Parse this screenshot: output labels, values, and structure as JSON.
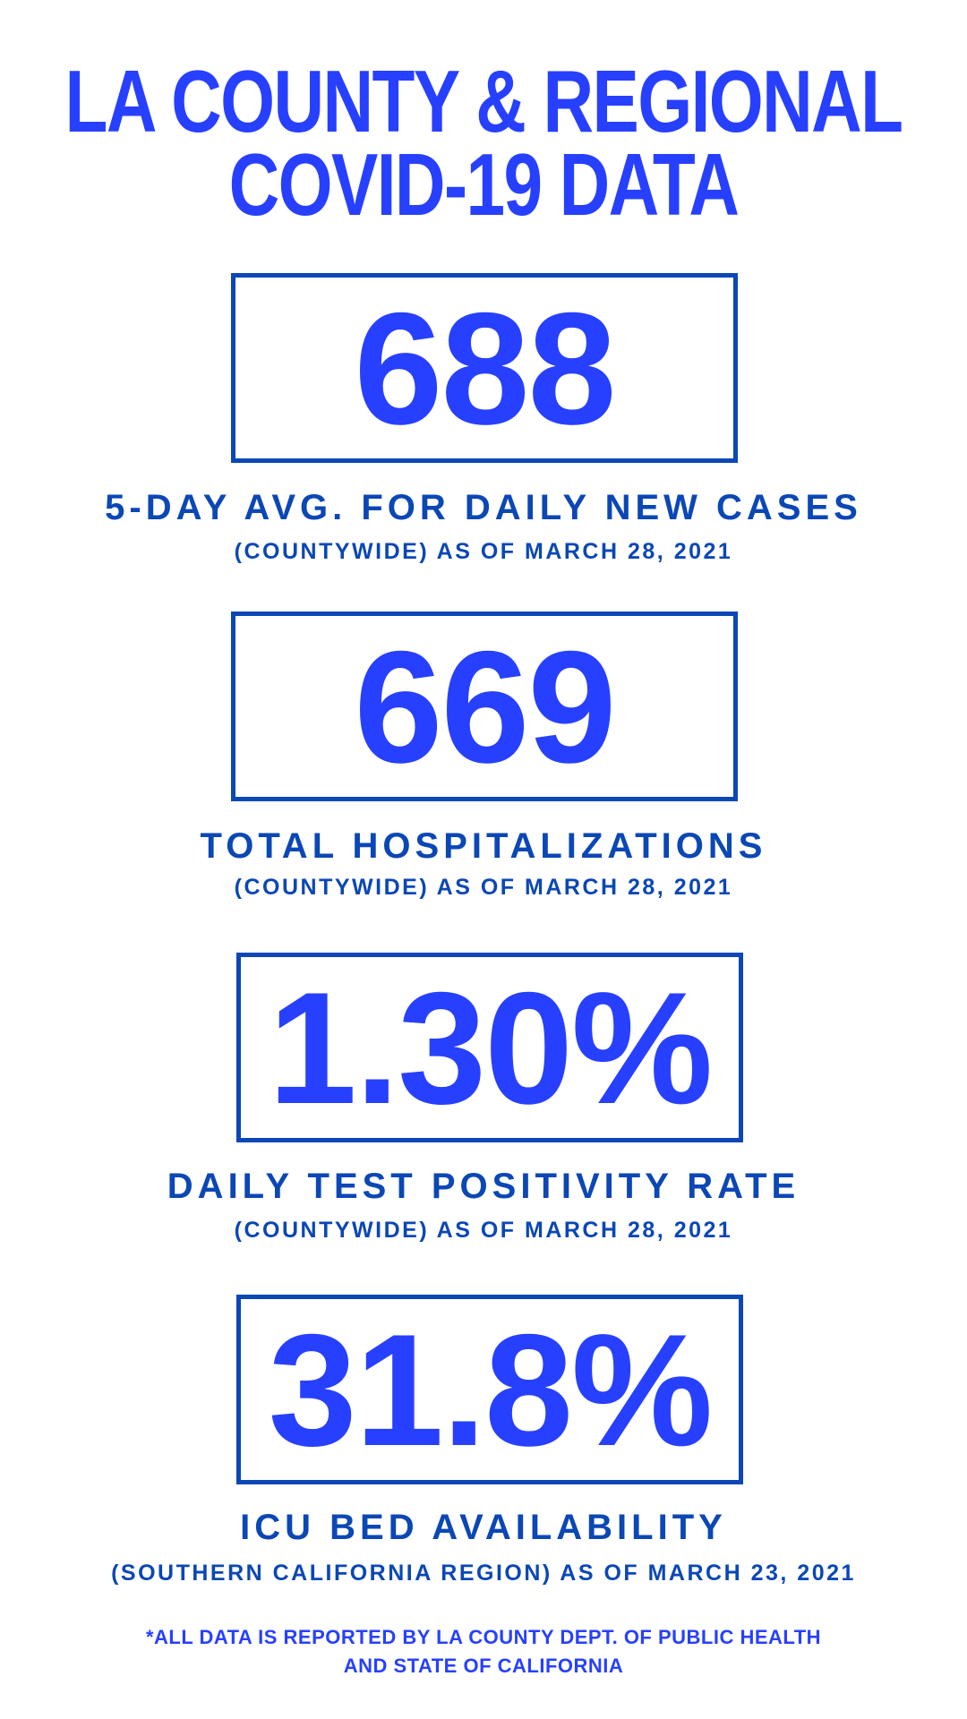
{
  "title": {
    "line1": "LA COUNTY & REGIONAL",
    "line2": "COVID-19 DATA"
  },
  "colors": {
    "accent": "#2740ff",
    "secondary": "#0b47b5",
    "background": "#ffffff"
  },
  "stats": [
    {
      "value": "688",
      "label": "5-DAY AVG. FOR DAILY NEW CASES",
      "sub": "(COUNTYWIDE) AS OF MARCH 28, 2021"
    },
    {
      "value": "669",
      "label": "TOTAL HOSPITALIZATIONS",
      "sub": "(COUNTYWIDE) AS OF MARCH 28, 2021"
    },
    {
      "value": "1.30%",
      "label": "DAILY TEST POSITIVITY RATE",
      "sub": "(COUNTYWIDE) AS OF MARCH 28, 2021"
    },
    {
      "value": "31.8%",
      "label": "ICU BED AVAILABILITY",
      "sub": "(SOUTHERN CALIFORNIA REGION) AS OF MARCH 23, 2021"
    }
  ],
  "footer": {
    "line1": "*ALL DATA IS REPORTED BY LA COUNTY DEPT. OF PUBLIC HEALTH",
    "line2": "AND STATE OF CALIFORNIA"
  }
}
